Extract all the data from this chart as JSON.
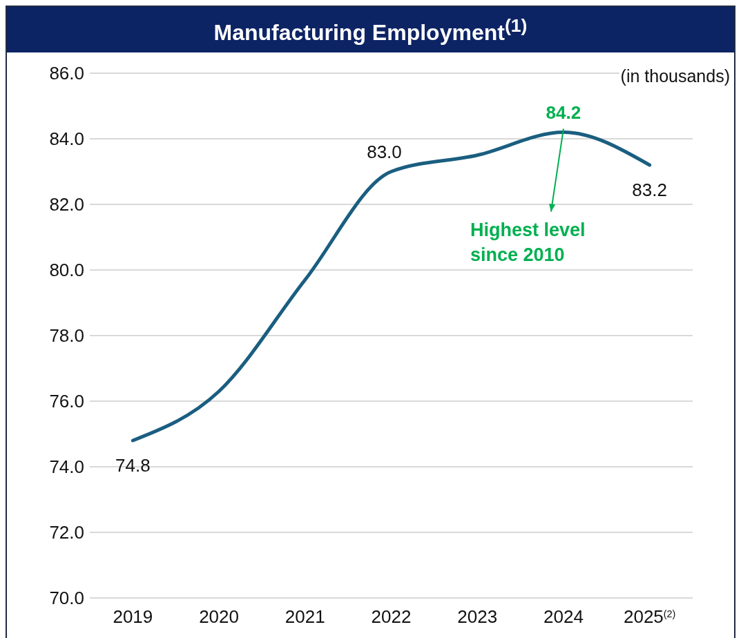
{
  "chart_data": {
    "type": "line",
    "title": "Manufacturing Employment$^{(1)}$",
    "categories": [
      "2019",
      "2020",
      "2021",
      "2022",
      "2023",
      "2024",
      "2025$^{(2)}$"
    ],
    "values": [
      74.8,
      76.3,
      79.7,
      83.0,
      83.5,
      84.2,
      83.2
    ],
    "value_labels": [
      "74.8",
      null,
      null,
      "83.0",
      null,
      "84.2",
      "83.2"
    ],
    "color": "#1a5e80",
    "ylim": [
      70,
      86
    ],
    "yticks": [
      {
        "value": 70,
        "label": "70.0"
      },
      {
        "value": 72,
        "label": "72.0"
      },
      {
        "value": 74,
        "label": "74.0"
      },
      {
        "value": 76,
        "label": "76.0"
      },
      {
        "value": 78,
        "label": "78.0"
      },
      {
        "value": 80,
        "label": "80.0"
      },
      {
        "value": 82,
        "label": "82.0"
      },
      {
        "value": 84,
        "label": "84.0"
      },
      {
        "value": 86,
        "label": "86.0"
      }
    ],
    "grid": "y",
    "annotations": [
      "(in thousands)",
      {
        "text": "Highest level since 2010",
        "x": "2024",
        "y": 84.2
      }
    ]
  }
}
